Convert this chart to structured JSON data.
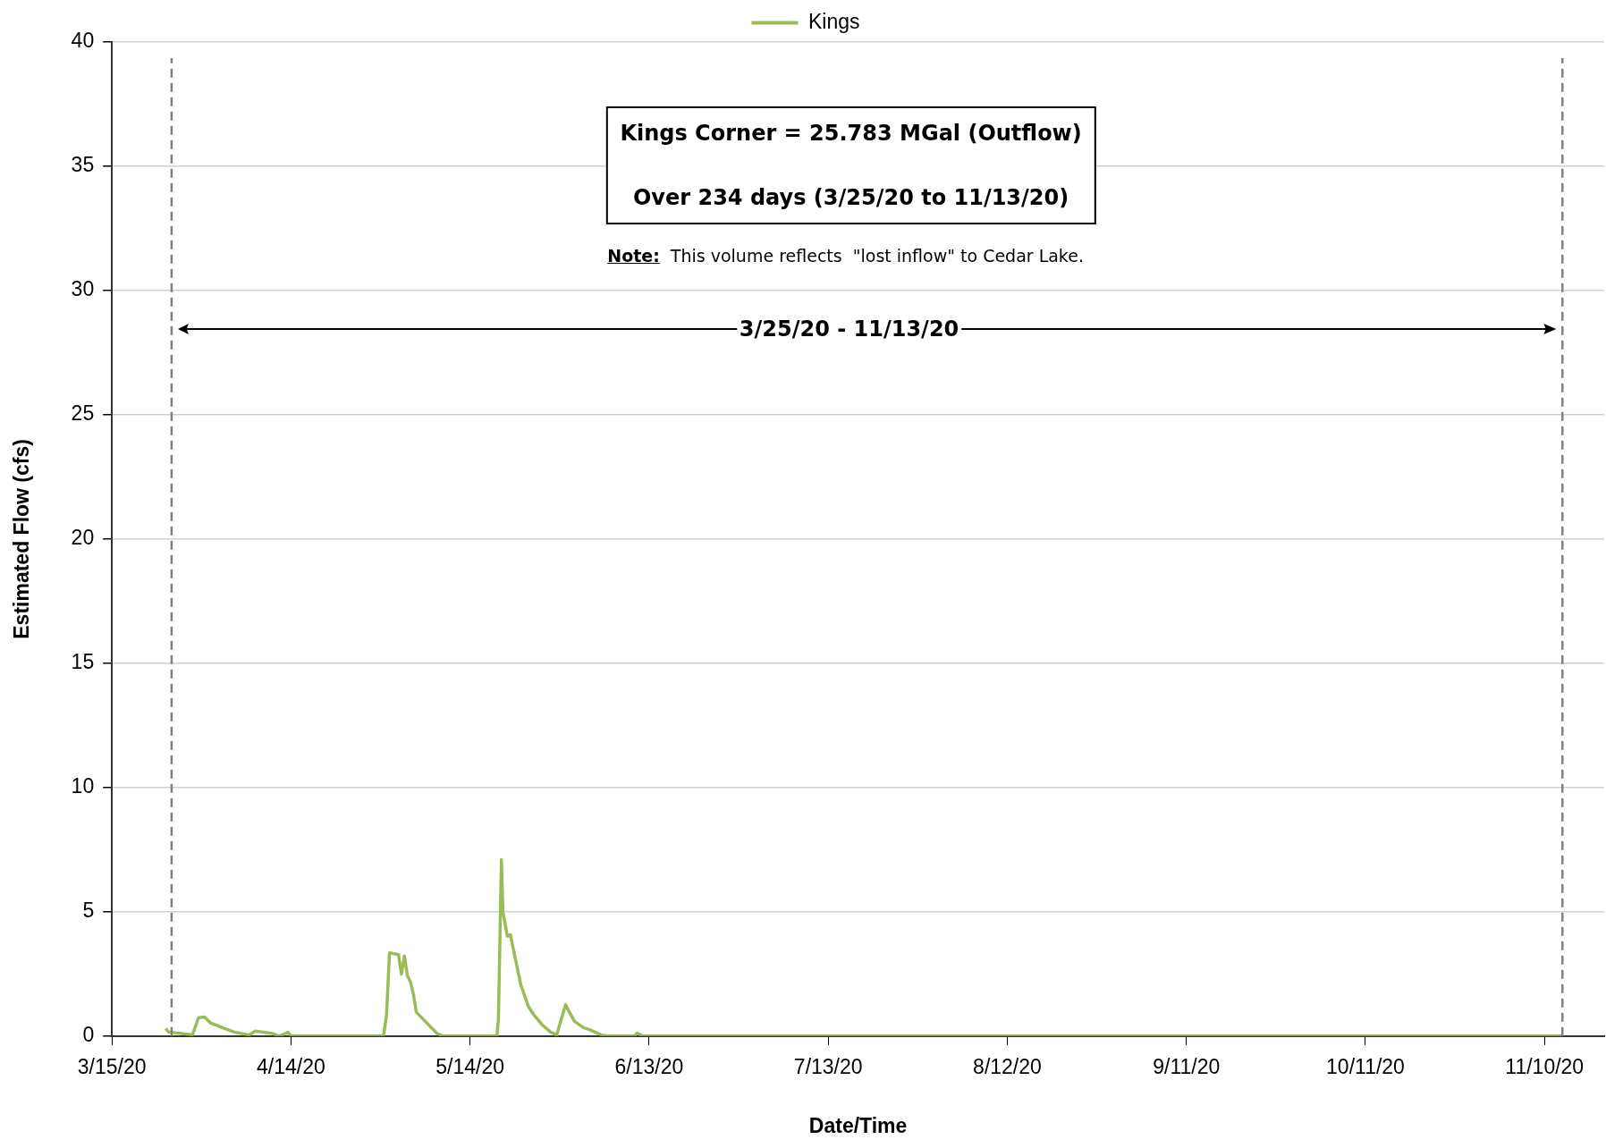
{
  "chart_data": {
    "type": "line",
    "xlabel": "Date/Time",
    "ylabel": "Estimated Flow (cfs)",
    "annotations": [
      "Kings Corner = 25.783 MGal (Outflow)",
      "Over 234 days (3/25/20 to 11/13/20)",
      "Note:  This volume reflects  \"lost inflow\" to Cedar Lake.",
      "3/25/20 - 11/13/20"
    ],
    "x": [
      "2020-03-24",
      "2020-03-24T12:00",
      "2020-03-28T12:00",
      "2020-03-29T12:00",
      "2020-03-30T12:00",
      "2020-03-31T12:00",
      "2020-04-02T12:00",
      "2020-04-04T12:00",
      "2020-04-07",
      "2020-04-08",
      "2020-04-11",
      "2020-04-12",
      "2020-04-13T12:00",
      "2020-04-14",
      "2020-04-29T12:00",
      "2020-04-30",
      "2020-04-30T12:00",
      "2020-05-02",
      "2020-05-02T12:00",
      "2020-05-03",
      "2020-05-03T12:00",
      "2020-05-04",
      "2020-05-04T12:00",
      "2020-05-05",
      "2020-05-06T12:00",
      "2020-05-07T12:00",
      "2020-05-08T12:00",
      "2020-05-09T12:00",
      "2020-05-18T12:00",
      "2020-05-18T18:00",
      "2020-05-19T06:00",
      "2020-05-19T12:00",
      "2020-05-20T06:00",
      "2020-05-20T18:00",
      "2020-05-21T18:00",
      "2020-05-22T12:00",
      "2020-05-23T18:00",
      "2020-05-24T18:00",
      "2020-05-26",
      "2020-05-27T12:00",
      "2020-05-28T12:00",
      "2020-05-30",
      "2020-05-30T12:00",
      "2020-05-31T12:00",
      "2020-06-02",
      "2020-06-03",
      "2020-06-05",
      "2020-06-06",
      "2020-06-10T12:00",
      "2020-06-11",
      "2020-06-12",
      "2020-11-13"
    ],
    "series": [
      {
        "name": "Kings",
        "color": "#9bbb59",
        "values": [
          0.3,
          0.16,
          0.05,
          0.74,
          0.77,
          0.53,
          0.34,
          0.16,
          0.04,
          0.2,
          0.1,
          0,
          0.15,
          0,
          0,
          0.83,
          3.35,
          3.28,
          2.49,
          3.22,
          2.43,
          2.18,
          1.69,
          0.96,
          0.59,
          0.34,
          0.1,
          0,
          0,
          0.7,
          7.1,
          5.0,
          4.02,
          4.08,
          2.92,
          2.06,
          1.2,
          0.83,
          0.47,
          0.16,
          0.04,
          1.26,
          1.02,
          0.59,
          0.34,
          0.26,
          0.04,
          0,
          0,
          0.12,
          0,
          0
        ]
      }
    ],
    "xlim": [
      "2020-03-15",
      "2020-11-20"
    ],
    "xticks": [
      {
        "value": "2020-03-15",
        "label": "3/15/20"
      },
      {
        "value": "2020-04-14",
        "label": "4/14/20"
      },
      {
        "value": "2020-05-14",
        "label": "5/14/20"
      },
      {
        "value": "2020-06-13",
        "label": "6/13/20"
      },
      {
        "value": "2020-07-13",
        "label": "7/13/20"
      },
      {
        "value": "2020-08-12",
        "label": "8/12/20"
      },
      {
        "value": "2020-09-11",
        "label": "9/11/20"
      },
      {
        "value": "2020-10-11",
        "label": "10/11/20"
      },
      {
        "value": "2020-11-10",
        "label": "11/10/20"
      }
    ],
    "ylim": [
      0,
      40
    ],
    "yticks": [
      0,
      5,
      10,
      15,
      20,
      25,
      30,
      35,
      40
    ],
    "ref_lines": [
      {
        "axis": "x",
        "value": "2020-03-25",
        "color": "#808080",
        "line_style": "dashed"
      },
      {
        "axis": "x",
        "value": "2020-11-13",
        "color": "#808080",
        "line_style": "dashed"
      }
    ],
    "grid": "y",
    "legend": "top",
    "marker": "none",
    "line_style": "solid"
  }
}
